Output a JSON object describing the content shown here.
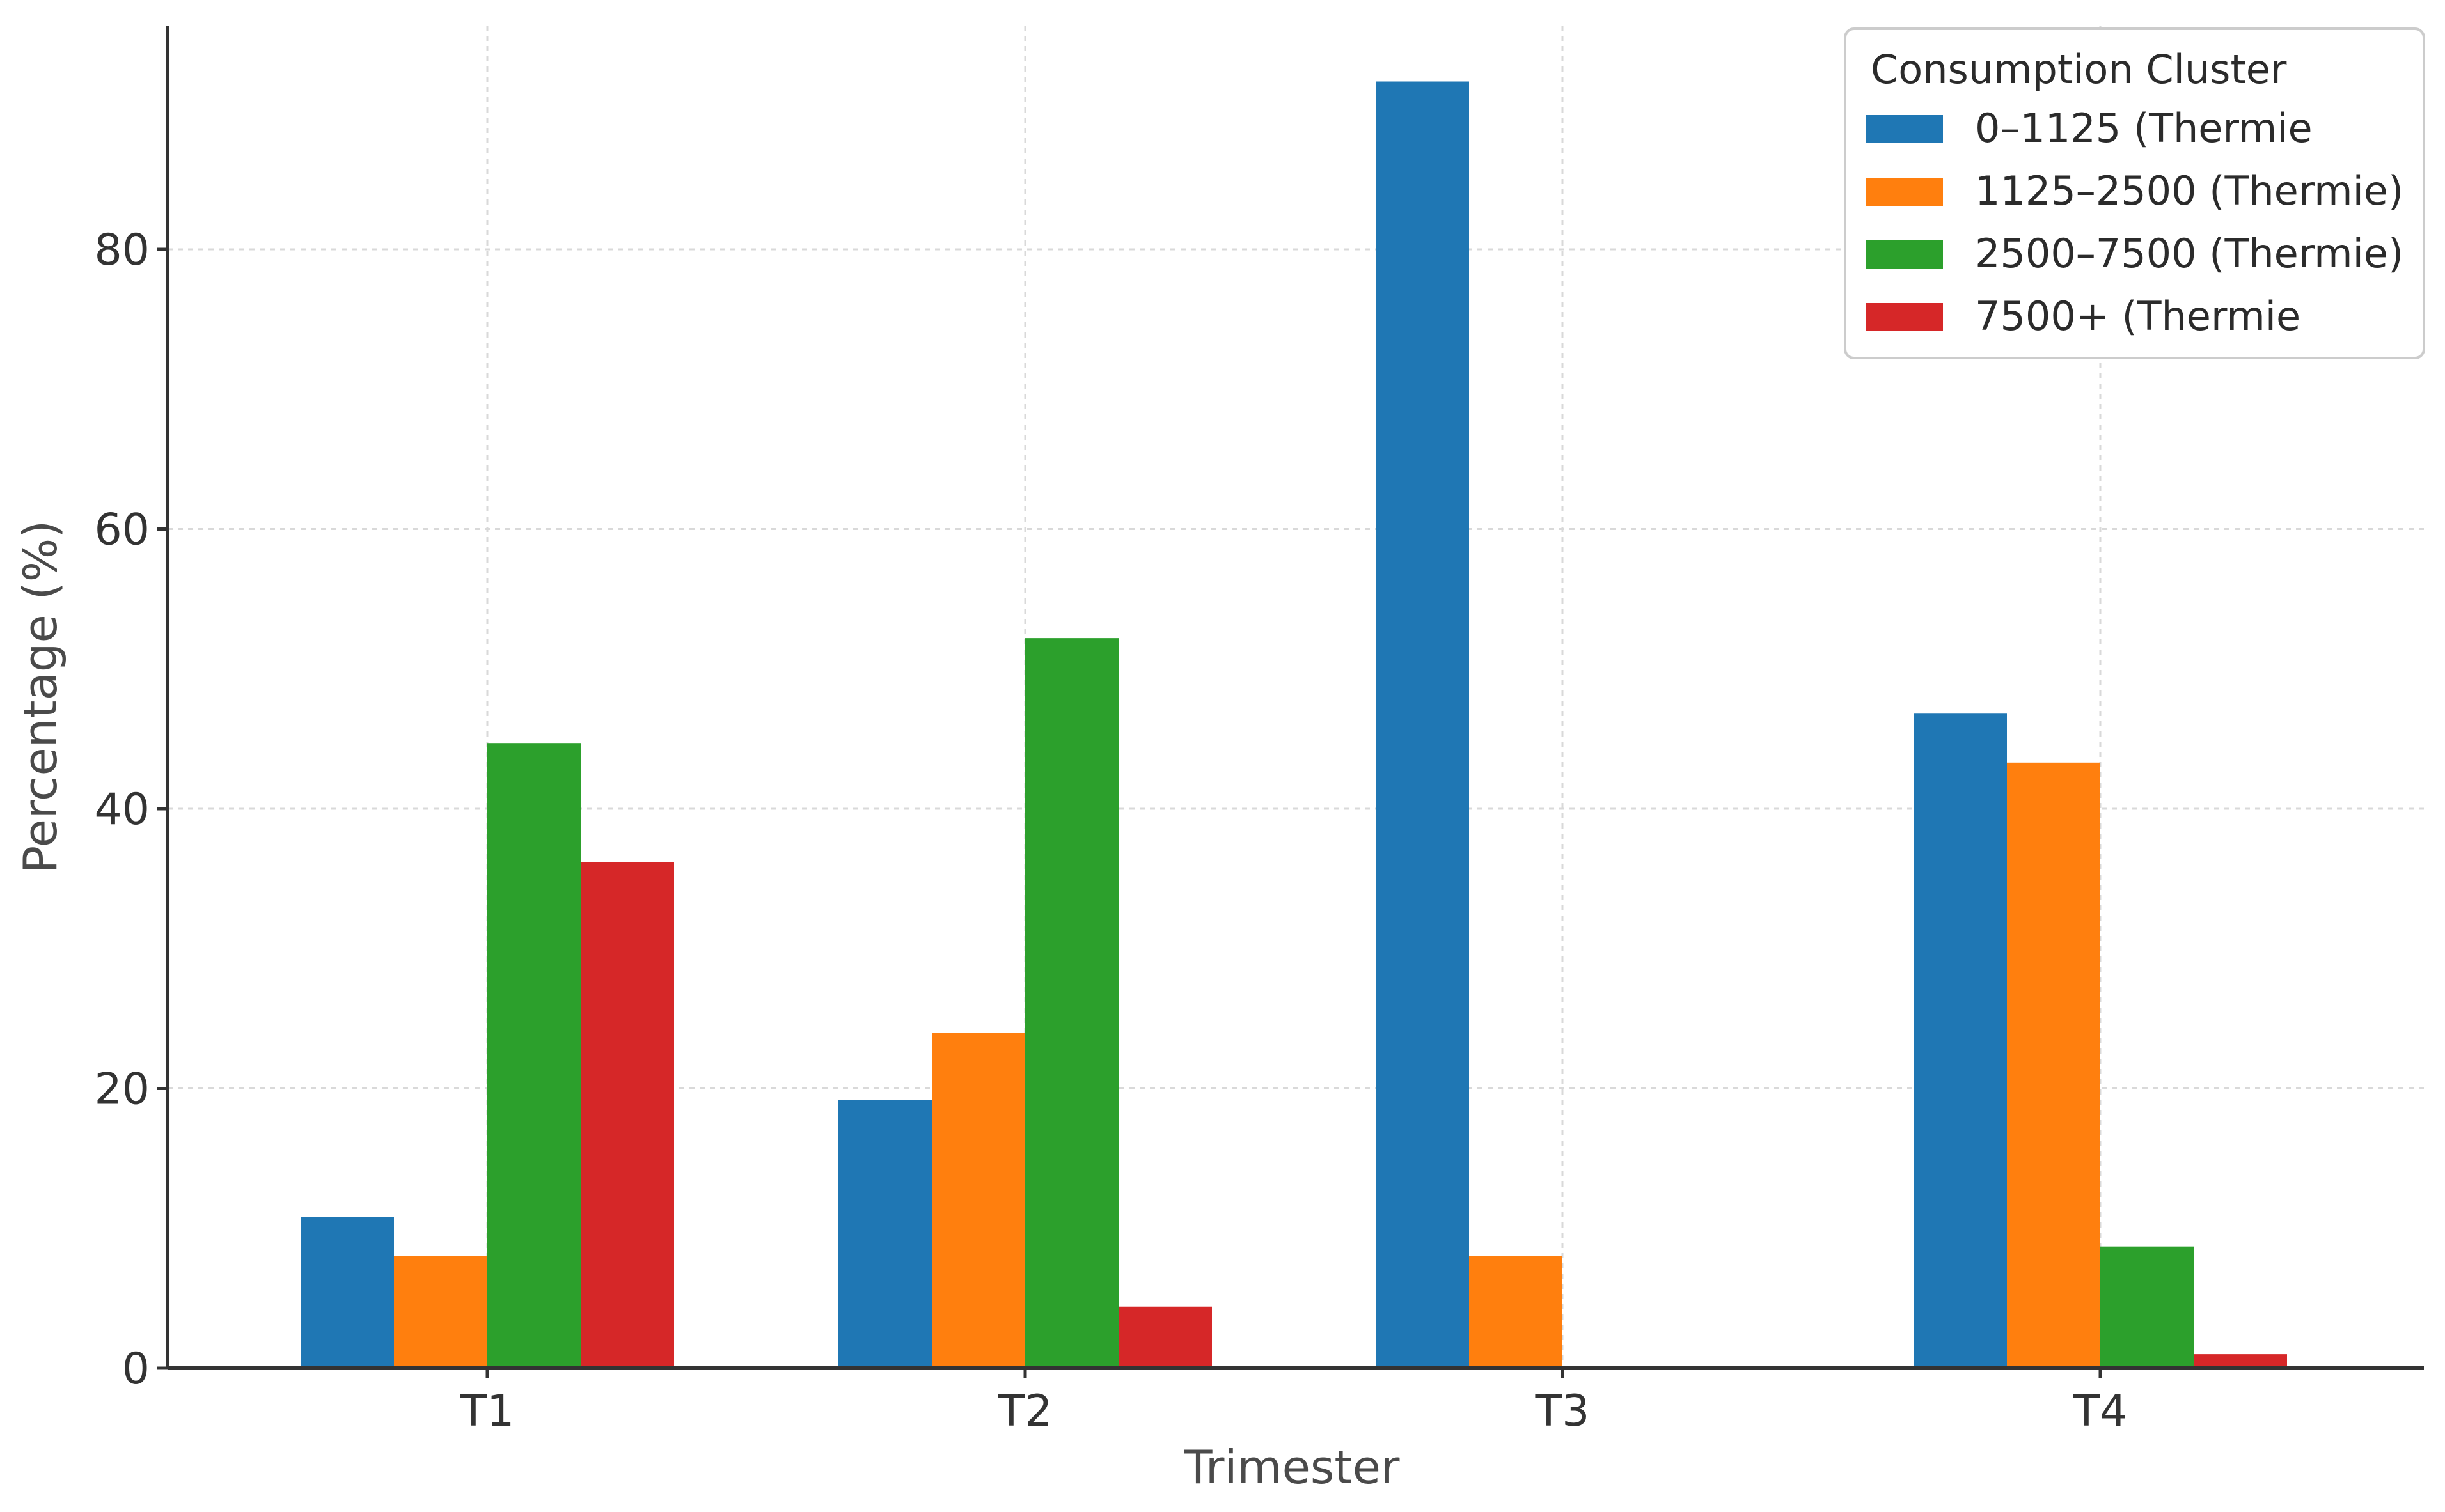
{
  "chart_data": {
    "type": "bar",
    "title": "",
    "xlabel": "Trimester",
    "ylabel": "Percentage (%)",
    "categories": [
      "T1",
      "T2",
      "T3",
      "T4"
    ],
    "ylim": [
      0,
      96
    ],
    "yticks": [
      0,
      20,
      40,
      60,
      80
    ],
    "grid": true,
    "legend": {
      "title": "Consumption Cluster",
      "placement": "top-right"
    },
    "series": [
      {
        "name": "0–1125 (Thermie",
        "color": "#1f77b4",
        "values": [
          10.8,
          19.2,
          92.0,
          46.8
        ]
      },
      {
        "name": "1125–2500 (Thermie)",
        "color": "#ff7f0e",
        "values": [
          8.0,
          24.0,
          8.0,
          43.3
        ]
      },
      {
        "name": "2500–7500 (Thermie)",
        "color": "#2ca02c",
        "values": [
          44.7,
          52.2,
          0,
          8.7
        ]
      },
      {
        "name": "7500+ (Thermie",
        "color": "#d62728",
        "values": [
          36.2,
          4.4,
          0,
          1.0
        ]
      }
    ]
  }
}
